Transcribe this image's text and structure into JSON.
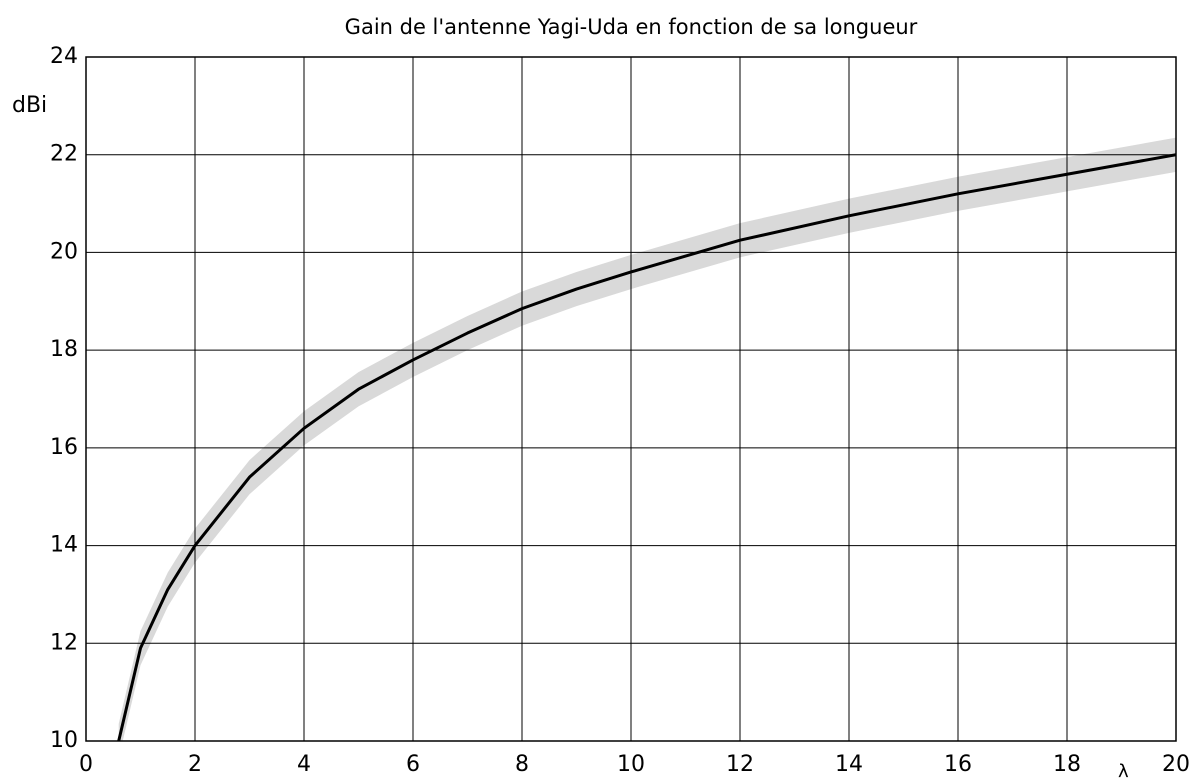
{
  "chart_data": {
    "type": "line",
    "title": "Gain de l'antenne Yagi-Uda en fonction de sa longueur",
    "y_label": "dBi",
    "x_label": "λ",
    "x": [
      0.6,
      1,
      1.5,
      2,
      3,
      4,
      5,
      6,
      7,
      8,
      9,
      10,
      12,
      14,
      16,
      18,
      20
    ],
    "series": [
      {
        "color": "#000000",
        "values": [
          10,
          11.9,
          13.1,
          14,
          15.4,
          16.4,
          17.2,
          17.8,
          18.35,
          18.85,
          19.25,
          19.6,
          20.25,
          20.75,
          21.2,
          21.6,
          22
        ]
      }
    ],
    "band": {
      "color": "#d9d9d9",
      "lower": [
        9.65,
        11.55,
        12.75,
        13.65,
        15.05,
        16.05,
        16.85,
        17.45,
        18.0,
        18.5,
        18.9,
        19.25,
        19.9,
        20.4,
        20.85,
        21.25,
        21.65
      ],
      "upper": [
        10.35,
        12.25,
        13.45,
        14.35,
        15.75,
        16.75,
        17.55,
        18.15,
        18.7,
        19.2,
        19.6,
        19.95,
        20.6,
        21.1,
        21.55,
        21.95,
        22.35
      ]
    },
    "xlim": [
      0,
      20
    ],
    "ylim": [
      10,
      24
    ],
    "xticks": [
      0,
      2,
      4,
      6,
      8,
      10,
      12,
      14,
      16,
      18,
      20
    ],
    "yticks": [
      10,
      12,
      14,
      16,
      18,
      20,
      22,
      24
    ],
    "grid": true
  }
}
